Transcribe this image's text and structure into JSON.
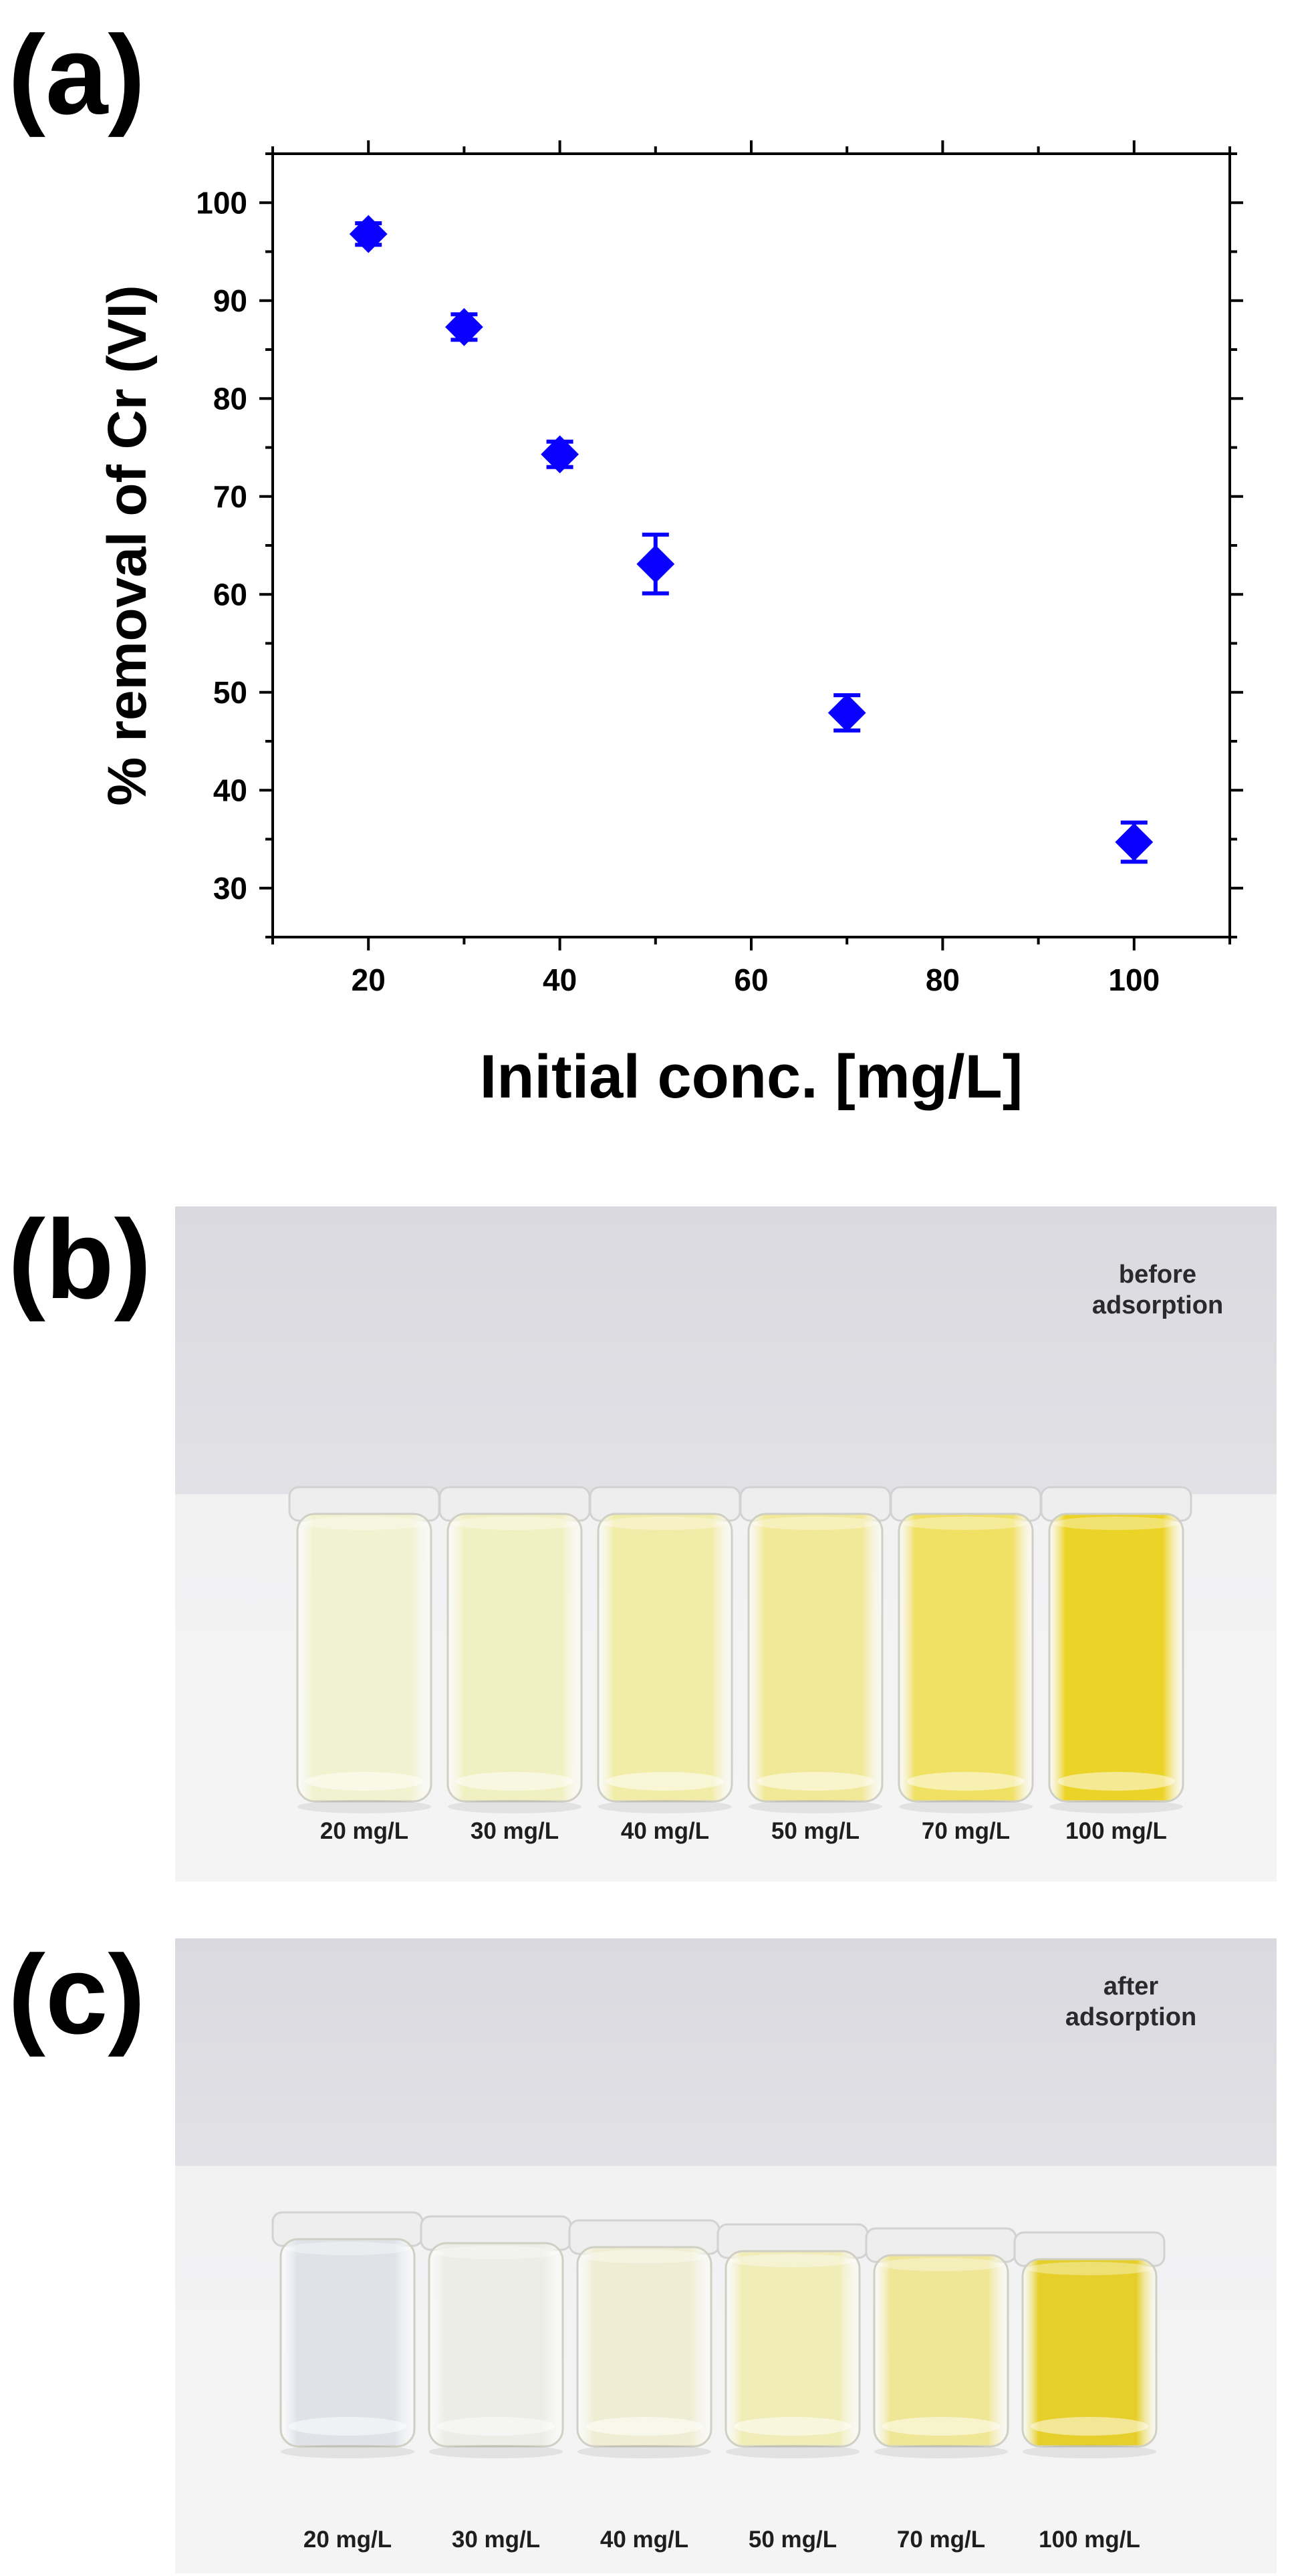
{
  "panels": {
    "a": {
      "label": "(a)"
    },
    "b": {
      "label": "(b)",
      "caption_line1": "before",
      "caption_line2": "adsorption",
      "vials": [
        {
          "label": "20 mg/L",
          "color": "#f1f2cf"
        },
        {
          "label": "30 mg/L",
          "color": "#f1f0c2"
        },
        {
          "label": "40 mg/L",
          "color": "#f1eca8"
        },
        {
          "label": "50 mg/L",
          "color": "#f1e898"
        },
        {
          "label": "70 mg/L",
          "color": "#f0e063"
        },
        {
          "label": "100 mg/L",
          "color": "#ecd327"
        }
      ]
    },
    "c": {
      "label": "(c)",
      "caption_line1": "after",
      "caption_line2": "adsorption",
      "vials": [
        {
          "label": "20 mg/L",
          "color": "#dfe3e8"
        },
        {
          "label": "30 mg/L",
          "color": "#ebede6"
        },
        {
          "label": "40 mg/L",
          "color": "#efeed4"
        },
        {
          "label": "50 mg/L",
          "color": "#f0edb8"
        },
        {
          "label": "70 mg/L",
          "color": "#efe696"
        },
        {
          "label": "100 mg/L",
          "color": "#e6cf2a"
        }
      ]
    }
  },
  "chart_data": {
    "type": "scatter",
    "xlabel": "Initial conc. [mg/L]",
    "ylabel": "% removal of Cr (VI)",
    "xlim": [
      10,
      110
    ],
    "ylim": [
      25,
      105
    ],
    "xticks": [
      20,
      40,
      60,
      80,
      100
    ],
    "yticks": [
      30,
      40,
      50,
      60,
      70,
      80,
      90,
      100
    ],
    "marker": "diamond",
    "marker_color": "#0a00ff",
    "grid": false,
    "series": [
      {
        "x": [
          20,
          30,
          40,
          50,
          70,
          100
        ],
        "y": [
          96.8,
          87.3,
          74.3,
          63.1,
          47.9,
          34.7
        ],
        "yerr": [
          1.1,
          1.3,
          1.3,
          3.0,
          1.8,
          2.0
        ]
      }
    ]
  }
}
